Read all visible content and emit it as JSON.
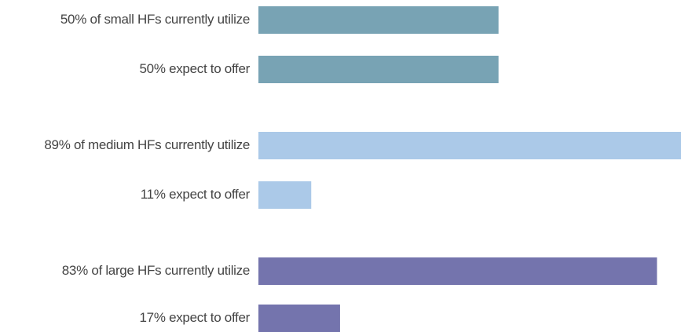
{
  "chart_data": {
    "type": "barh",
    "categories": [
      "50% of small HFs currently utilize",
      "50% expect to offer",
      "89% of medium HFs currently utilize",
      "11% expect to offer",
      "83% of large HFs currently utilize",
      "17% expect to offer"
    ],
    "values": [
      50,
      50,
      89,
      11,
      83,
      17
    ],
    "colors": [
      "#78a3b4",
      "#78a3b4",
      "#abc9e8",
      "#abc9e8",
      "#7474ad",
      "#7474ad"
    ],
    "xlim": [
      0,
      88
    ]
  }
}
